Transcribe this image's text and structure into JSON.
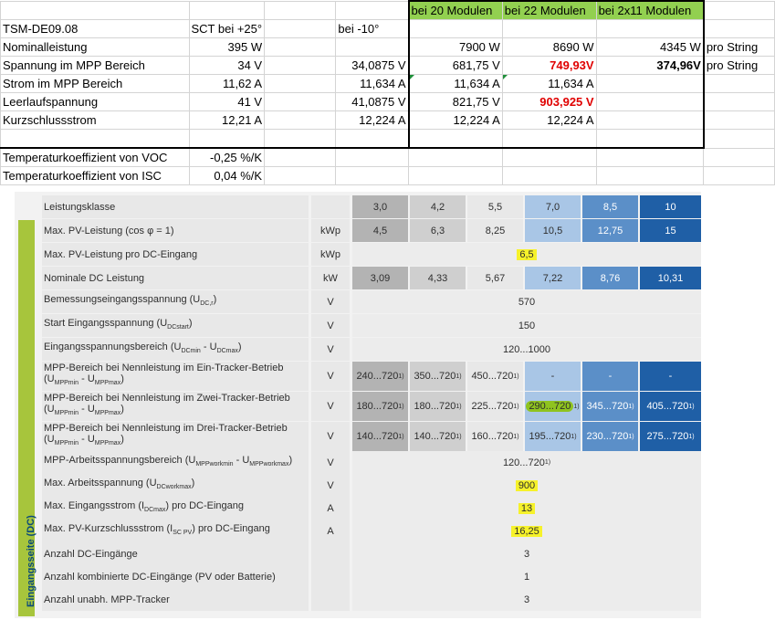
{
  "excel": {
    "header": [
      "bei 20 Modulen",
      "bei 22 Modulen",
      "bei 2x11 Modulen"
    ],
    "module": "TSM-DE09.08",
    "col_b_header": "SCT bei +25°",
    "col_d_header": "bei -10°",
    "rows": [
      {
        "label": "Nominalleistung",
        "b": "395 W",
        "d": "",
        "e": "7900 W",
        "f": "8690 W",
        "g": "4345 W",
        "h": "pro String"
      },
      {
        "label": "Spannung im MPP Bereich",
        "b": "34 V",
        "d": "34,0875 V",
        "e": "681,75 V",
        "f": "749,93V",
        "g": "374,96V",
        "h": "pro String"
      },
      {
        "label": "Strom im MPP Bereich",
        "b": "11,62 A",
        "d": "11,634 A",
        "e": "11,634 A",
        "f": "11,634 A",
        "g": "",
        "h": ""
      },
      {
        "label": "Leerlaufspannung",
        "b": "41 V",
        "d": "41,0875 V",
        "e": "821,75 V",
        "f": "903,925 V",
        "g": "",
        "h": ""
      },
      {
        "label": "Kurzschlussstrom",
        "b": "12,21 A",
        "d": "12,224 A",
        "e": "12,224 A",
        "f": "12,224 A",
        "g": "",
        "h": ""
      }
    ],
    "temp_rows": [
      {
        "label": "Temperaturkoeffizient von VOC",
        "value": "-0,25 %/K"
      },
      {
        "label": "Temperaturkoeffizient von ISC",
        "value": "0,04 %/K"
      }
    ]
  },
  "spec": {
    "side_label": "Eingangsseite (DC)",
    "rows": [
      {
        "label": "Leistungsklasse",
        "unit": "",
        "cells": [
          "3,0",
          "4,2",
          "5,5",
          "7,0",
          "8,5",
          "10"
        ]
      },
      {
        "label": "Max. PV-Leistung (cos φ = 1)",
        "unit": "kWp",
        "cells": [
          "4,5",
          "6,3",
          "8,25",
          "10,5",
          "12,75",
          "15"
        ]
      },
      {
        "label": "Max. PV-Leistung pro DC-Eingang",
        "unit": "kWp",
        "span": "6,5",
        "highlight": true
      },
      {
        "label": "Nominale DC Leistung",
        "unit": "kW",
        "cells": [
          "3,09",
          "4,33",
          "5,67",
          "7,22",
          "8,76",
          "10,31"
        ]
      },
      {
        "label": "Bemessungseingangsspannung (U",
        "sub": "DC,r",
        "label_end": ")",
        "unit": "V",
        "span": "570"
      },
      {
        "label": "Start Eingangsspannung (U",
        "sub": "DCstart",
        "label_end": ")",
        "unit": "V",
        "span": "150"
      },
      {
        "label": "Eingangsspannungsbereich (U",
        "sub": "DCmin",
        "mid": " - U",
        "sub2": "DCmax",
        "label_end": ")",
        "unit": "V",
        "span": "120...1000"
      },
      {
        "label": "MPP-Bereich bei Nennleistung im Ein-Tracker-Betrieb",
        "line2a": "(U",
        "sub": "MPPmin",
        "mid": " - U",
        "sub2": "MPPmax",
        "label_end": ")",
        "unit": "V",
        "cells": [
          "240...720",
          "350...720",
          "450...720",
          "-",
          "-",
          "-"
        ],
        "sup": "1)"
      },
      {
        "label": "MPP-Bereich bei Nennleistung im Zwei-Tracker-Betrieb",
        "line2a": "(U",
        "sub": "MPPmin",
        "mid": " - U",
        "sub2": "MPPmax",
        "label_end": ")",
        "unit": "V",
        "cells": [
          "180...720",
          "180...720",
          "225...720",
          "290...720",
          "345...720",
          "405...720"
        ],
        "sup": "1)"
      },
      {
        "label": "MPP-Bereich bei Nennleistung im Drei-Tracker-Betrieb",
        "line2a": "(U",
        "sub": "MPPmin",
        "mid": " - U",
        "sub2": "MPPmax",
        "label_end": ")",
        "unit": "V",
        "cells": [
          "140...720",
          "140...720",
          "160...720",
          "195...720",
          "230...720",
          "275...720"
        ],
        "sup": "1)"
      },
      {
        "label": "MPP-Arbeitsspannungsbereich (U",
        "sub": "MPPworkmin",
        "mid": " - U",
        "sub2": "MPPworkmax",
        "label_end": ")",
        "unit": "V",
        "span": "120...720",
        "span_sup": "1)"
      },
      {
        "label": "Max. Arbeitsspannung (U",
        "sub": "DCworkmax",
        "label_end": ")",
        "unit": "V",
        "span": "900",
        "highlight": true
      },
      {
        "label": "Max. Eingangsstrom (I",
        "sub": "DCmax",
        "label_end": ") pro DC-Eingang",
        "unit": "A",
        "span": "13",
        "highlight": true
      },
      {
        "label": "Max. PV-Kurzschlussstrom (I",
        "sub": "SC PV",
        "label_end": ") pro DC-Eingang",
        "unit": "A",
        "span": "16,25",
        "highlight": true
      },
      {
        "label": "Anzahl DC-Eingänge",
        "unit": "",
        "span": "3"
      },
      {
        "label": "Anzahl kombinierte DC-Eingänge (PV oder Batterie)",
        "unit": "",
        "span": "1"
      },
      {
        "label": "Anzahl unabh. MPP-Tracker",
        "unit": "",
        "span": "3"
      }
    ]
  }
}
